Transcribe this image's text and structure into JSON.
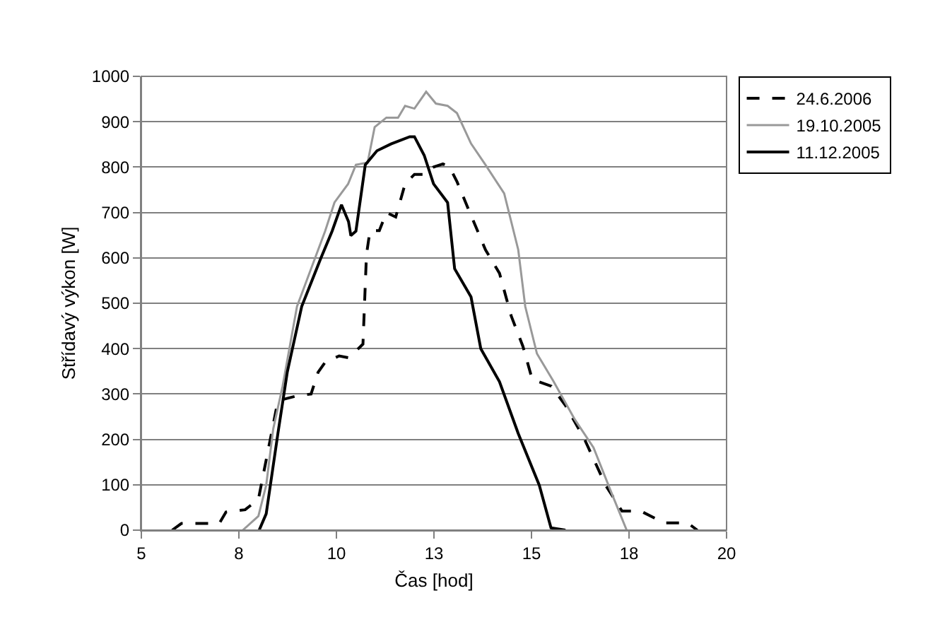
{
  "chart_data": {
    "type": "line",
    "xlabel": "Čas [hod]",
    "ylabel": "Střídavý výkon [W]",
    "xlim": [
      5,
      20
    ],
    "xticks": [
      5,
      {
        "value": 7.5,
        "label": "8"
      },
      10,
      {
        "value": 12.5,
        "label": "13"
      },
      15,
      {
        "value": 17.5,
        "label": "18"
      },
      20
    ],
    "ylim": [
      0,
      1000
    ],
    "yticks": [
      0,
      100,
      200,
      300,
      400,
      500,
      600,
      700,
      800,
      900,
      1000
    ],
    "grid": "y",
    "legend": "top right",
    "marker": "none",
    "series": [
      {
        "name": "24.6.2006",
        "color": "#000000",
        "line_style": "dashed",
        "x": [
          5.79,
          6.03,
          7.0,
          7.17,
          7.66,
          8.0,
          8.5,
          8.99,
          9.35,
          9.53,
          9.71,
          10.07,
          10.3,
          10.56,
          10.68,
          10.77,
          10.86,
          11.1,
          11.28,
          11.52,
          11.76,
          12.0,
          12.25,
          12.49,
          12.73,
          12.9,
          13.09,
          13.39,
          13.82,
          14.18,
          14.48,
          14.78,
          15.02,
          15.51,
          15.87,
          16.35,
          16.9,
          17.32,
          17.8,
          18.4,
          19.0,
          19.25
        ],
        "values": [
          0,
          15,
          15,
          40,
          45,
          68,
          285,
          296,
          300,
          348,
          370,
          384,
          380,
          400,
          410,
          607,
          660,
          660,
          700,
          690,
          763,
          784,
          784,
          800,
          807,
          800,
          768,
          706,
          618,
          566,
          472,
          405,
          332,
          317,
          275,
          202,
          99,
          42,
          42,
          16,
          16,
          0
        ]
      },
      {
        "name": "19.10.2005",
        "color": "#999999",
        "line_style": "solid",
        "x": [
          7.6,
          8.0,
          8.2,
          8.38,
          8.62,
          8.99,
          9.35,
          9.71,
          9.95,
          10.3,
          10.5,
          10.8,
          10.98,
          11.28,
          11.58,
          11.76,
          12.0,
          12.3,
          12.55,
          12.85,
          13.09,
          13.45,
          13.82,
          14.3,
          14.66,
          14.84,
          15.14,
          15.57,
          16.11,
          16.59,
          17.07,
          17.44
        ],
        "values": [
          0,
          31,
          99,
          223,
          317,
          493,
          576,
          659,
          722,
          763,
          805,
          810,
          888,
          909,
          909,
          935,
          929,
          966,
          940,
          935,
          919,
          852,
          805,
          742,
          618,
          493,
          389,
          327,
          244,
          182,
          78,
          0
        ]
      },
      {
        "name": "11.12.2005",
        "color": "#000000",
        "line_style": "solid",
        "x": [
          8.02,
          8.2,
          8.5,
          8.74,
          9.11,
          9.59,
          9.89,
          10.13,
          10.31,
          10.37,
          10.5,
          10.74,
          11.04,
          11.4,
          11.88,
          12.0,
          12.25,
          12.49,
          12.85,
          13.03,
          13.45,
          13.7,
          14.18,
          14.66,
          15.2,
          15.5,
          15.87
        ],
        "values": [
          0,
          36,
          213,
          348,
          493,
          597,
          659,
          717,
          680,
          649,
          659,
          805,
          836,
          851,
          867,
          867,
          826,
          763,
          722,
          576,
          514,
          400,
          327,
          213,
          99,
          5,
          0
        ]
      }
    ]
  }
}
